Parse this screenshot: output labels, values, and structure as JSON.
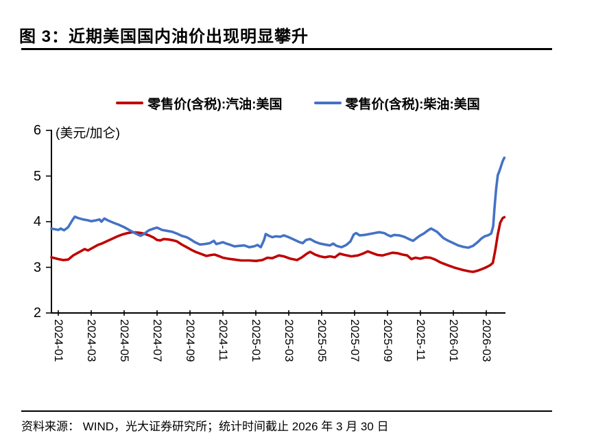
{
  "page": {
    "title": "图 3：近期美国国内油价出现明显攀升"
  },
  "footer": {
    "source_text": "资料来源： WIND，光大证券研究所；统计时间截止 2026 年 3 月 30 日"
  },
  "chart_data": {
    "type": "line",
    "title": "近期美国国内油价出现明显攀升",
    "unit_label": "(美元/加仑)",
    "xlabel": "",
    "ylabel": "美元/加仑",
    "ylim": [
      2,
      6
    ],
    "y_ticks": [
      2,
      3,
      4,
      5,
      6
    ],
    "grid": false,
    "legend_position": "top-center",
    "axis_color": "#000000",
    "x_tick_labels": [
      "2024-01",
      "2024-03",
      "2024-05",
      "2024-07",
      "2024-09",
      "2024-11",
      "2025-01",
      "2025-03",
      "2025-05",
      "2025-07",
      "2025-09",
      "2025-11",
      "2026-01",
      "2026-03"
    ],
    "x_months_per_tick": 2,
    "xlim_months": [
      -0.42,
      27.1
    ],
    "series": [
      {
        "name": "零售价(含税):汽油:美国",
        "color": "#C00000",
        "points": [
          [
            -0.42,
            3.22
          ],
          [
            0,
            3.18
          ],
          [
            0.3,
            3.16
          ],
          [
            0.6,
            3.17
          ],
          [
            0.9,
            3.26
          ],
          [
            1.3,
            3.34
          ],
          [
            1.6,
            3.4
          ],
          [
            1.8,
            3.37
          ],
          [
            2.1,
            3.43
          ],
          [
            2.4,
            3.49
          ],
          [
            2.7,
            3.53
          ],
          [
            3,
            3.58
          ],
          [
            3.3,
            3.63
          ],
          [
            3.6,
            3.68
          ],
          [
            3.9,
            3.72
          ],
          [
            4.2,
            3.75
          ],
          [
            4.5,
            3.77
          ],
          [
            4.9,
            3.76
          ],
          [
            5.2,
            3.74
          ],
          [
            5.5,
            3.7
          ],
          [
            5.8,
            3.65
          ],
          [
            6,
            3.6
          ],
          [
            6.2,
            3.59
          ],
          [
            6.4,
            3.62
          ],
          [
            6.7,
            3.61
          ],
          [
            7,
            3.59
          ],
          [
            7.2,
            3.57
          ],
          [
            7.5,
            3.5
          ],
          [
            7.8,
            3.44
          ],
          [
            8.1,
            3.38
          ],
          [
            8.4,
            3.33
          ],
          [
            8.7,
            3.29
          ],
          [
            9,
            3.25
          ],
          [
            9.3,
            3.27
          ],
          [
            9.5,
            3.28
          ],
          [
            9.8,
            3.24
          ],
          [
            10,
            3.21
          ],
          [
            10.3,
            3.19
          ],
          [
            10.7,
            3.17
          ],
          [
            11.1,
            3.15
          ],
          [
            11.6,
            3.15
          ],
          [
            12,
            3.14
          ],
          [
            12.4,
            3.16
          ],
          [
            12.7,
            3.21
          ],
          [
            13,
            3.2
          ],
          [
            13.4,
            3.26
          ],
          [
            13.7,
            3.24
          ],
          [
            14.1,
            3.19
          ],
          [
            14.5,
            3.16
          ],
          [
            14.8,
            3.22
          ],
          [
            15.1,
            3.3
          ],
          [
            15.3,
            3.34
          ],
          [
            15.6,
            3.28
          ],
          [
            15.9,
            3.24
          ],
          [
            16.2,
            3.22
          ],
          [
            16.5,
            3.24
          ],
          [
            16.8,
            3.22
          ],
          [
            17.1,
            3.3
          ],
          [
            17.4,
            3.27
          ],
          [
            17.8,
            3.24
          ],
          [
            18.2,
            3.26
          ],
          [
            18.5,
            3.3
          ],
          [
            18.8,
            3.35
          ],
          [
            19.1,
            3.31
          ],
          [
            19.4,
            3.27
          ],
          [
            19.7,
            3.26
          ],
          [
            20,
            3.29
          ],
          [
            20.3,
            3.32
          ],
          [
            20.6,
            3.31
          ],
          [
            20.9,
            3.28
          ],
          [
            21.2,
            3.26
          ],
          [
            21.45,
            3.18
          ],
          [
            21.7,
            3.21
          ],
          [
            22,
            3.19
          ],
          [
            22.3,
            3.22
          ],
          [
            22.6,
            3.21
          ],
          [
            22.9,
            3.17
          ],
          [
            23.2,
            3.11
          ],
          [
            23.7,
            3.04
          ],
          [
            24.1,
            2.99
          ],
          [
            24.6,
            2.94
          ],
          [
            25,
            2.91
          ],
          [
            25.2,
            2.9
          ],
          [
            25.5,
            2.93
          ],
          [
            25.8,
            2.97
          ],
          [
            26.05,
            3.01
          ],
          [
            26.25,
            3.05
          ],
          [
            26.4,
            3.1
          ],
          [
            26.55,
            3.38
          ],
          [
            26.7,
            3.72
          ],
          [
            26.85,
            3.98
          ],
          [
            27,
            4.08
          ],
          [
            27.1,
            4.1
          ]
        ]
      },
      {
        "name": "零售价(含税):柴油:美国",
        "color": "#4472C4",
        "points": [
          [
            -0.42,
            3.85
          ],
          [
            0,
            3.82
          ],
          [
            0.15,
            3.85
          ],
          [
            0.35,
            3.81
          ],
          [
            0.6,
            3.88
          ],
          [
            0.85,
            4.03
          ],
          [
            1,
            4.11
          ],
          [
            1.2,
            4.08
          ],
          [
            1.5,
            4.05
          ],
          [
            1.8,
            4.03
          ],
          [
            2,
            4.01
          ],
          [
            2.3,
            4.03
          ],
          [
            2.5,
            4.05
          ],
          [
            2.62,
            4.0
          ],
          [
            2.8,
            4.07
          ],
          [
            3,
            4.03
          ],
          [
            3.4,
            3.97
          ],
          [
            3.7,
            3.93
          ],
          [
            4,
            3.88
          ],
          [
            4.4,
            3.8
          ],
          [
            4.7,
            3.74
          ],
          [
            5,
            3.69
          ],
          [
            5.2,
            3.73
          ],
          [
            5.5,
            3.81
          ],
          [
            5.8,
            3.85
          ],
          [
            6,
            3.87
          ],
          [
            6.3,
            3.82
          ],
          [
            6.6,
            3.8
          ],
          [
            6.9,
            3.78
          ],
          [
            7.2,
            3.74
          ],
          [
            7.5,
            3.69
          ],
          [
            7.8,
            3.66
          ],
          [
            8,
            3.62
          ],
          [
            8.3,
            3.55
          ],
          [
            8.6,
            3.5
          ],
          [
            8.9,
            3.51
          ],
          [
            9.2,
            3.53
          ],
          [
            9.45,
            3.58
          ],
          [
            9.6,
            3.51
          ],
          [
            9.8,
            3.53
          ],
          [
            10,
            3.55
          ],
          [
            10.2,
            3.52
          ],
          [
            10.4,
            3.5
          ],
          [
            10.7,
            3.46
          ],
          [
            11,
            3.47
          ],
          [
            11.3,
            3.48
          ],
          [
            11.6,
            3.44
          ],
          [
            11.9,
            3.46
          ],
          [
            12.1,
            3.49
          ],
          [
            12.3,
            3.44
          ],
          [
            12.5,
            3.6
          ],
          [
            12.6,
            3.73
          ],
          [
            12.8,
            3.69
          ],
          [
            13,
            3.66
          ],
          [
            13.2,
            3.68
          ],
          [
            13.5,
            3.67
          ],
          [
            13.7,
            3.7
          ],
          [
            14,
            3.66
          ],
          [
            14.3,
            3.61
          ],
          [
            14.6,
            3.56
          ],
          [
            14.85,
            3.53
          ],
          [
            15.05,
            3.6
          ],
          [
            15.3,
            3.62
          ],
          [
            15.6,
            3.56
          ],
          [
            15.9,
            3.52
          ],
          [
            16.2,
            3.5
          ],
          [
            16.5,
            3.48
          ],
          [
            16.7,
            3.52
          ],
          [
            16.9,
            3.47
          ],
          [
            17.2,
            3.44
          ],
          [
            17.5,
            3.49
          ],
          [
            17.75,
            3.57
          ],
          [
            17.95,
            3.72
          ],
          [
            18.1,
            3.75
          ],
          [
            18.3,
            3.7
          ],
          [
            18.6,
            3.71
          ],
          [
            18.9,
            3.73
          ],
          [
            19.2,
            3.75
          ],
          [
            19.5,
            3.77
          ],
          [
            19.8,
            3.75
          ],
          [
            20,
            3.71
          ],
          [
            20.2,
            3.68
          ],
          [
            20.4,
            3.71
          ],
          [
            20.7,
            3.7
          ],
          [
            21,
            3.67
          ],
          [
            21.3,
            3.62
          ],
          [
            21.55,
            3.58
          ],
          [
            21.8,
            3.65
          ],
          [
            22,
            3.7
          ],
          [
            22.2,
            3.74
          ],
          [
            22.5,
            3.82
          ],
          [
            22.65,
            3.85
          ],
          [
            23,
            3.78
          ],
          [
            23.4,
            3.64
          ],
          [
            23.7,
            3.58
          ],
          [
            24,
            3.53
          ],
          [
            24.3,
            3.48
          ],
          [
            24.6,
            3.45
          ],
          [
            24.9,
            3.43
          ],
          [
            25.2,
            3.47
          ],
          [
            25.5,
            3.56
          ],
          [
            25.7,
            3.63
          ],
          [
            25.9,
            3.68
          ],
          [
            26.1,
            3.7
          ],
          [
            26.3,
            3.74
          ],
          [
            26.42,
            3.9
          ],
          [
            26.5,
            4.3
          ],
          [
            26.6,
            4.72
          ],
          [
            26.7,
            5.02
          ],
          [
            26.8,
            5.11
          ],
          [
            26.9,
            5.22
          ],
          [
            27,
            5.33
          ],
          [
            27.08,
            5.39
          ],
          [
            27.1,
            5.4
          ]
        ]
      }
    ]
  }
}
